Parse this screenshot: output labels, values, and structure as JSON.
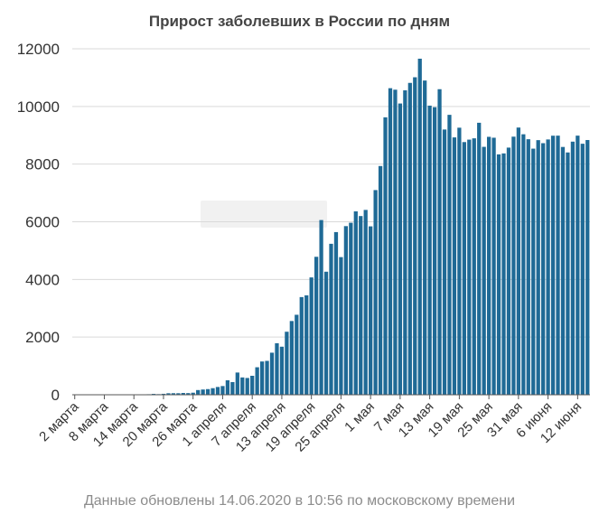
{
  "chart_data": {
    "type": "bar",
    "title": "Прирост заболевших в России по дням",
    "xlabel": "",
    "ylabel": "",
    "ylim": [
      0,
      12000
    ],
    "y_ticks": [
      0,
      2000,
      4000,
      6000,
      8000,
      10000,
      12000
    ],
    "x_tick_labels": [
      "2 марта",
      "8 марта",
      "14 марта",
      "20 марта",
      "26 марта",
      "1 апреля",
      "7 апреля",
      "13 апреля",
      "19 апреля",
      "25 апреля",
      "1 мая",
      "7 мая",
      "13 мая",
      "19 мая",
      "25 мая",
      "31 мая",
      "6 июня",
      "12 июня"
    ],
    "grid": "horizontal",
    "bar_color": "#1f6a96",
    "values": [
      1,
      0,
      0,
      0,
      0,
      0,
      3,
      0,
      0,
      6,
      2,
      6,
      6,
      3,
      14,
      18,
      30,
      21,
      33,
      52,
      54,
      53,
      62,
      57,
      71,
      163,
      182,
      196,
      228,
      270,
      302,
      501,
      440,
      771,
      601,
      582,
      658,
      954,
      1154,
      1175,
      1459,
      1786,
      1667,
      2186,
      2558,
      2774,
      3388,
      3448,
      4070,
      4785,
      6060,
      4268,
      5236,
      5642,
      4774,
      5849,
      5966,
      6361,
      6198,
      6411,
      5841,
      7099,
      7933,
      9623,
      10633,
      10581,
      10102,
      10559,
      10817,
      11012,
      11656,
      10899,
      10028,
      9974,
      10598,
      9200,
      9709,
      8926,
      9263,
      8764,
      8849,
      8894,
      9434,
      8599,
      8946,
      8915,
      8338,
      8371,
      8572,
      8952,
      9268,
      9035,
      8863,
      8536,
      8831,
      8726,
      8855,
      8985,
      8987,
      8595,
      8404,
      8779,
      8987,
      8706,
      8835
    ]
  },
  "footnote": "Данные обновлены 14.06.2020 в 10:56 по московскому времени"
}
